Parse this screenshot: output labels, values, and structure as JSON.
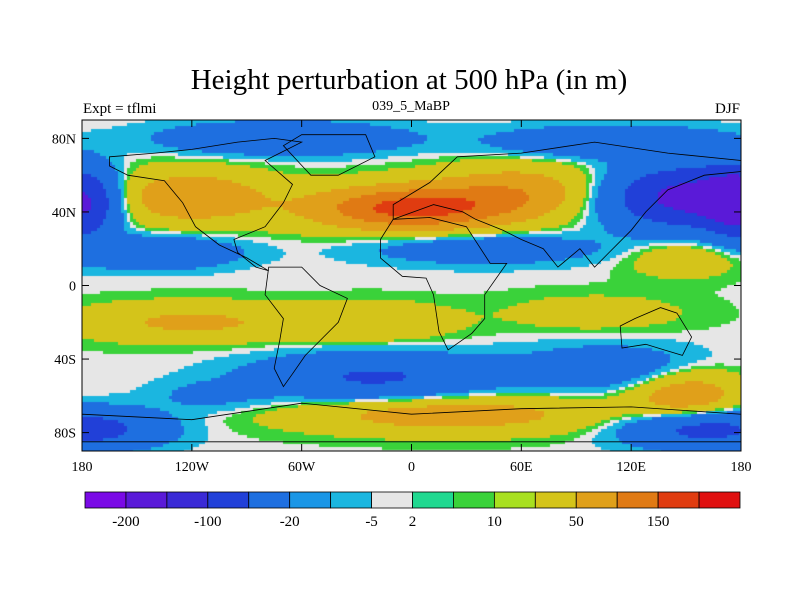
{
  "chart_data": {
    "type": "heatmap",
    "title": "Height perturbation at 500 hPa (in m)",
    "left_subtitle": "Expt = tflmi",
    "center_subtitle": "039_5_MaBP",
    "right_subtitle": "DJF",
    "x_tick_labels": [
      "180",
      "120W",
      "60W",
      "0",
      "60E",
      "120E",
      "180"
    ],
    "y_tick_labels": [
      "80N",
      "40N",
      "0",
      "40S",
      "80S"
    ],
    "lon_range": [
      -180,
      180
    ],
    "lat_range": [
      -90,
      90
    ],
    "colorbar_labels": [
      "-200",
      "-100",
      "-20",
      "-5",
      "2",
      "10",
      "50",
      "150"
    ],
    "level_colors": [
      "#7a0ae6",
      "#5a1ad8",
      "#3a2ad6",
      "#2140d8",
      "#1e6fe0",
      "#1a96e6",
      "#1bb6e0",
      "#e6e6e6",
      "#20d890",
      "#3ad23a",
      "#a8e020",
      "#d4c41a",
      "#e0a01a",
      "#e07a14",
      "#e03c10",
      "#e01010"
    ],
    "field_colors": [
      "#5a1ad8",
      "#2140d8",
      "#1e6fe0",
      "#1bb6e0",
      "#e6e6e6",
      "#3ad23a",
      "#d4c41a",
      "#e0a01a",
      "#e07a14",
      "#e03c10"
    ],
    "field_thresholds_m": [
      -200,
      -100,
      -20,
      -5,
      2,
      10,
      50,
      100,
      150
    ]
  }
}
